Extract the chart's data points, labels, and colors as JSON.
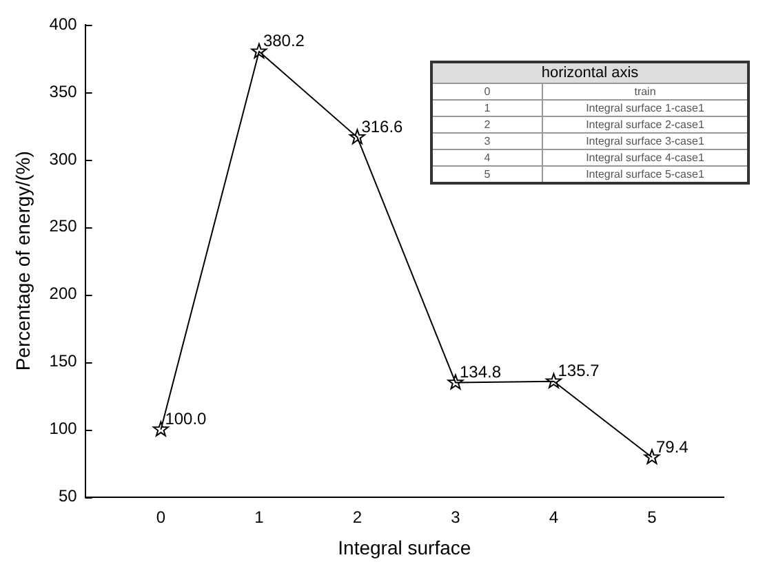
{
  "chart_data": {
    "type": "line",
    "xlabel": "Integral surface",
    "ylabel": "Percentage of energy/(%)",
    "x": [
      0,
      1,
      2,
      3,
      4,
      5
    ],
    "values": [
      100.0,
      380.2,
      316.6,
      134.8,
      135.7,
      79.4
    ],
    "value_labels": [
      "100.0",
      "380.2",
      "316.6",
      "134.8",
      "135.7",
      "79.4"
    ],
    "color": "#000000",
    "marker": "star",
    "line_style": "solid",
    "grid": false,
    "legend": false,
    "xlim": [
      -0.77,
      5.73
    ],
    "xticks": [
      0,
      1,
      2,
      3,
      4,
      5
    ],
    "ylim": [
      50,
      400
    ],
    "yticks": [
      50,
      100,
      150,
      200,
      250,
      300,
      350,
      400
    ],
    "annotations": [
      "horizontal axis",
      "0",
      "train",
      "1",
      "Integral surface 1-case1",
      "2",
      "Integral surface 2-case1",
      "3",
      "Integral surface 3-case1",
      "4",
      "Integral surface 4-case1",
      "5",
      "Integral surface 5-case1"
    ]
  }
}
